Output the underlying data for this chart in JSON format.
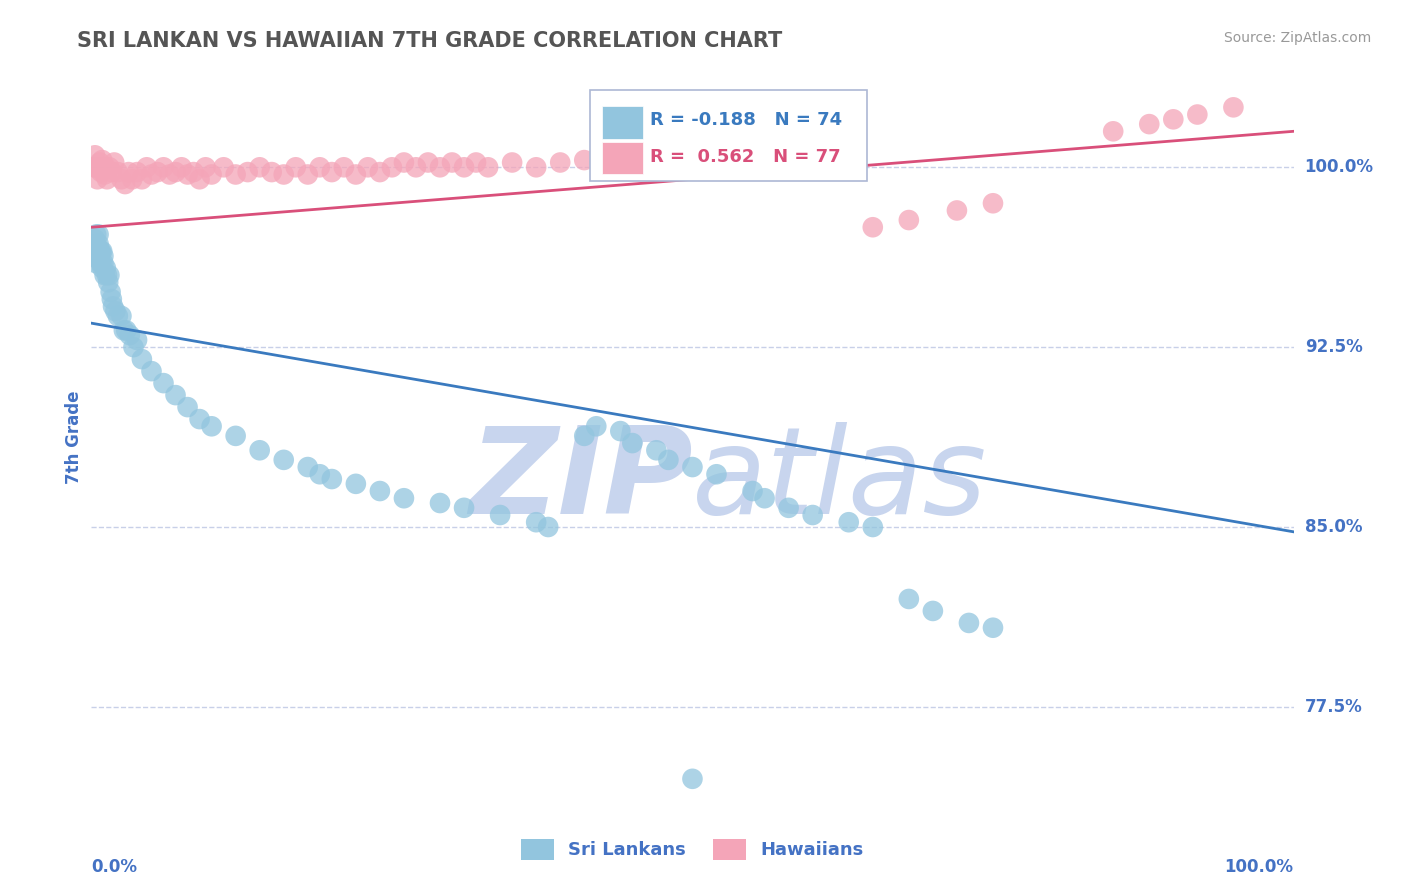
{
  "title": "SRI LANKAN VS HAWAIIAN 7TH GRADE CORRELATION CHART",
  "source_text": "Source: ZipAtlas.com",
  "ylabel": "7th Grade",
  "r_sri": -0.188,
  "n_sri": 74,
  "r_haw": 0.562,
  "n_haw": 77,
  "sri_color": "#92c5de",
  "haw_color": "#f4a5b8",
  "sri_line_color": "#3a7abf",
  "haw_line_color": "#d94f7a",
  "title_color": "#555555",
  "axis_label_color": "#4472c4",
  "tick_color": "#4472c4",
  "grid_color": "#c8d0e8",
  "watermark_main_color": "#cdd8f0",
  "background_color": "#ffffff",
  "xlim": [
    0.0,
    1.0
  ],
  "ylim": [
    0.735,
    1.04
  ],
  "y_tick_vals": [
    0.775,
    0.85,
    0.925,
    1.0
  ],
  "y_tick_labels": [
    "77.5%",
    "85.0%",
    "92.5%",
    "100.0%"
  ],
  "sri_line_x0": 0.0,
  "sri_line_y0": 0.935,
  "sri_line_x1": 1.0,
  "sri_line_y1": 0.848,
  "haw_line_x0": 0.0,
  "haw_line_y0": 0.975,
  "haw_line_x1": 1.0,
  "haw_line_y1": 1.015,
  "sri_scatter_x": [
    0.002,
    0.003,
    0.003,
    0.004,
    0.004,
    0.005,
    0.005,
    0.006,
    0.006,
    0.006,
    0.007,
    0.007,
    0.008,
    0.008,
    0.009,
    0.009,
    0.01,
    0.01,
    0.011,
    0.012,
    0.013,
    0.014,
    0.015,
    0.016,
    0.017,
    0.018,
    0.02,
    0.022,
    0.025,
    0.027,
    0.029,
    0.032,
    0.035,
    0.038,
    0.042,
    0.05,
    0.06,
    0.07,
    0.08,
    0.09,
    0.1,
    0.12,
    0.14,
    0.16,
    0.18,
    0.19,
    0.2,
    0.22,
    0.24,
    0.26,
    0.29,
    0.31,
    0.34,
    0.37,
    0.38,
    0.41,
    0.42,
    0.44,
    0.45,
    0.47,
    0.48,
    0.5,
    0.52,
    0.55,
    0.56,
    0.58,
    0.6,
    0.63,
    0.65,
    0.68,
    0.7,
    0.73,
    0.75,
    0.5
  ],
  "sri_scatter_y": [
    0.965,
    0.97,
    0.968,
    0.972,
    0.96,
    0.967,
    0.962,
    0.972,
    0.965,
    0.968,
    0.965,
    0.963,
    0.96,
    0.965,
    0.965,
    0.958,
    0.963,
    0.96,
    0.955,
    0.958,
    0.955,
    0.952,
    0.955,
    0.948,
    0.945,
    0.942,
    0.94,
    0.938,
    0.938,
    0.932,
    0.932,
    0.93,
    0.925,
    0.928,
    0.92,
    0.915,
    0.91,
    0.905,
    0.9,
    0.895,
    0.892,
    0.888,
    0.882,
    0.878,
    0.875,
    0.872,
    0.87,
    0.868,
    0.865,
    0.862,
    0.86,
    0.858,
    0.855,
    0.852,
    0.85,
    0.888,
    0.892,
    0.89,
    0.885,
    0.882,
    0.878,
    0.875,
    0.872,
    0.865,
    0.862,
    0.858,
    0.855,
    0.852,
    0.85,
    0.82,
    0.815,
    0.81,
    0.808,
    0.745
  ],
  "haw_scatter_x": [
    0.002,
    0.003,
    0.004,
    0.005,
    0.006,
    0.007,
    0.008,
    0.009,
    0.01,
    0.011,
    0.012,
    0.013,
    0.015,
    0.017,
    0.019,
    0.022,
    0.025,
    0.028,
    0.031,
    0.034,
    0.038,
    0.042,
    0.046,
    0.05,
    0.055,
    0.06,
    0.065,
    0.07,
    0.075,
    0.08,
    0.085,
    0.09,
    0.095,
    0.1,
    0.11,
    0.12,
    0.13,
    0.14,
    0.15,
    0.16,
    0.17,
    0.18,
    0.19,
    0.2,
    0.21,
    0.22,
    0.23,
    0.24,
    0.25,
    0.26,
    0.27,
    0.28,
    0.29,
    0.3,
    0.31,
    0.32,
    0.33,
    0.35,
    0.37,
    0.39,
    0.41,
    0.43,
    0.45,
    0.47,
    0.5,
    0.53,
    0.56,
    0.61,
    0.65,
    0.68,
    0.72,
    0.75,
    0.85,
    0.88,
    0.9,
    0.92,
    0.95
  ],
  "haw_scatter_y": [
    1.0,
    1.005,
    1.0,
    0.995,
    1.0,
    1.002,
    0.998,
    1.003,
    1.0,
    0.997,
    1.0,
    0.995,
    1.0,
    0.998,
    1.002,
    0.998,
    0.995,
    0.993,
    0.998,
    0.995,
    0.998,
    0.995,
    1.0,
    0.997,
    0.998,
    1.0,
    0.997,
    0.998,
    1.0,
    0.997,
    0.998,
    0.995,
    1.0,
    0.997,
    1.0,
    0.997,
    0.998,
    1.0,
    0.998,
    0.997,
    1.0,
    0.997,
    1.0,
    0.998,
    1.0,
    0.997,
    1.0,
    0.998,
    1.0,
    1.002,
    1.0,
    1.002,
    1.0,
    1.002,
    1.0,
    1.002,
    1.0,
    1.002,
    1.0,
    1.002,
    1.003,
    1.005,
    1.003,
    1.005,
    1.008,
    1.005,
    1.007,
    1.01,
    0.975,
    0.978,
    0.982,
    0.985,
    1.015,
    1.018,
    1.02,
    1.022,
    1.025
  ]
}
